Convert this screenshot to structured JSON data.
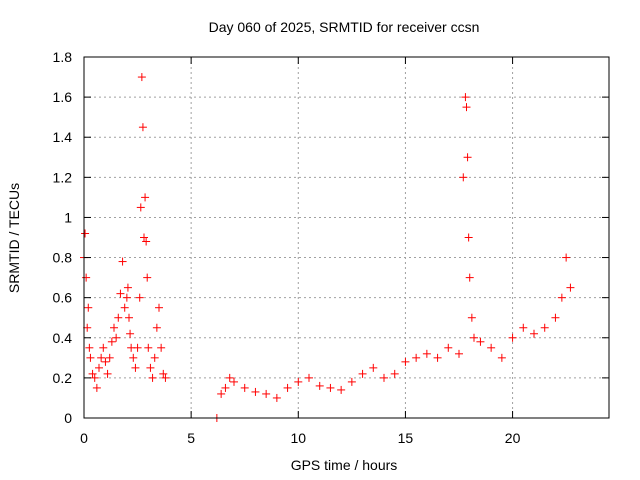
{
  "chart_data": {
    "type": "scatter",
    "title": "Day 060 of 2025, SRMTID for receiver ccsn",
    "xlabel": "GPS time / hours",
    "ylabel": "SRMTID / TECUs",
    "xlim": [
      0,
      24.5
    ],
    "ylim": [
      0,
      1.8
    ],
    "xticks": [
      0,
      5,
      10,
      15,
      20
    ],
    "yticks": [
      0,
      0.2,
      0.4,
      0.6,
      0.8,
      1,
      1.2,
      1.4,
      1.6,
      1.8
    ],
    "ytick_labels": [
      "0",
      "0.2",
      "0.4",
      "0.6",
      "0.8",
      "1",
      "1.2",
      "1.4",
      "1.6",
      "1.8"
    ],
    "grid": true,
    "marker": "+",
    "color": "#ff0000",
    "series": [
      {
        "name": "SRMTID",
        "x": [
          0.0,
          0.05,
          0.1,
          0.15,
          0.2,
          0.25,
          0.3,
          0.4,
          0.5,
          0.6,
          0.7,
          0.8,
          0.9,
          1.0,
          1.1,
          1.2,
          1.3,
          1.4,
          1.5,
          1.6,
          1.7,
          1.8,
          1.9,
          2.0,
          2.05,
          2.1,
          2.15,
          2.2,
          2.3,
          2.4,
          2.5,
          2.6,
          2.65,
          2.7,
          2.75,
          2.8,
          2.85,
          2.9,
          2.95,
          3.0,
          3.1,
          3.2,
          3.3,
          3.4,
          3.5,
          3.6,
          3.7,
          3.8,
          6.2,
          6.4,
          6.6,
          6.8,
          7.0,
          7.5,
          8.0,
          8.5,
          9.0,
          9.5,
          10.0,
          10.5,
          11.0,
          11.5,
          12.0,
          12.5,
          13.0,
          13.5,
          14.0,
          14.5,
          15.0,
          15.5,
          16.0,
          16.5,
          17.0,
          17.5,
          17.7,
          17.8,
          17.85,
          17.9,
          17.95,
          18.0,
          18.1,
          18.2,
          18.5,
          19.0,
          19.5,
          20.0,
          20.5,
          21.0,
          21.5,
          22.0,
          22.3,
          22.5,
          22.7
        ],
        "y": [
          0.8,
          0.92,
          0.7,
          0.45,
          0.55,
          0.35,
          0.3,
          0.22,
          0.2,
          0.15,
          0.25,
          0.3,
          0.35,
          0.28,
          0.22,
          0.3,
          0.38,
          0.45,
          0.4,
          0.5,
          0.62,
          0.78,
          0.55,
          0.6,
          0.65,
          0.5,
          0.42,
          0.35,
          0.3,
          0.25,
          0.35,
          0.6,
          1.05,
          1.7,
          1.45,
          0.9,
          1.1,
          0.88,
          0.7,
          0.35,
          0.25,
          0.2,
          0.3,
          0.45,
          0.55,
          0.35,
          0.22,
          0.2,
          0.0,
          0.12,
          0.15,
          0.2,
          0.18,
          0.15,
          0.13,
          0.12,
          0.1,
          0.15,
          0.18,
          0.2,
          0.16,
          0.15,
          0.14,
          0.18,
          0.22,
          0.25,
          0.2,
          0.22,
          0.28,
          0.3,
          0.32,
          0.3,
          0.35,
          0.32,
          1.2,
          1.6,
          1.55,
          1.3,
          0.9,
          0.7,
          0.5,
          0.4,
          0.38,
          0.35,
          0.3,
          0.4,
          0.45,
          0.42,
          0.45,
          0.5,
          0.6,
          0.8,
          0.65
        ]
      }
    ]
  }
}
